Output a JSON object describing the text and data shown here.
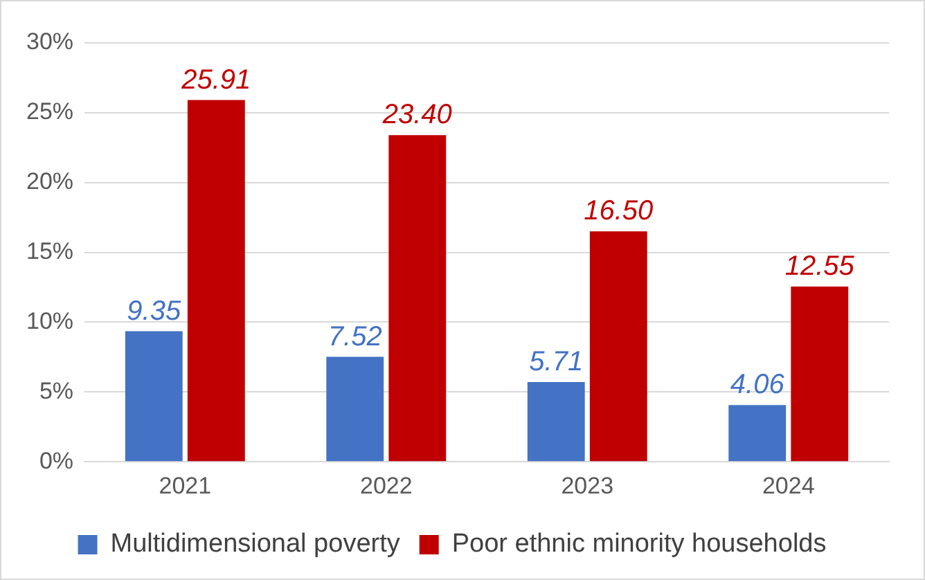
{
  "chart_data": {
    "type": "bar",
    "categories": [
      "2021",
      "2022",
      "2023",
      "2024"
    ],
    "series": [
      {
        "name": "Multidimensional poverty",
        "color": "#4472c4",
        "values": [
          9.35,
          7.52,
          5.71,
          4.06
        ],
        "value_labels": [
          "9.35",
          "7.52",
          "5.71",
          "4.06"
        ]
      },
      {
        "name": "Poor ethnic minority households",
        "color": "#c00000",
        "values": [
          25.91,
          23.4,
          16.5,
          12.55
        ],
        "value_labels": [
          "25.91",
          "23.40",
          "16.50",
          "12.55"
        ]
      }
    ],
    "ylim": [
      0,
      30
    ],
    "yticks": [
      {
        "value": 0,
        "label": "0%"
      },
      {
        "value": 5,
        "label": "5%"
      },
      {
        "value": 10,
        "label": "10%"
      },
      {
        "value": 15,
        "label": "15%"
      },
      {
        "value": 20,
        "label": "20%"
      },
      {
        "value": 25,
        "label": "25%"
      },
      {
        "value": 30,
        "label": "30%"
      }
    ],
    "grid": "y",
    "legend": "bottom"
  }
}
